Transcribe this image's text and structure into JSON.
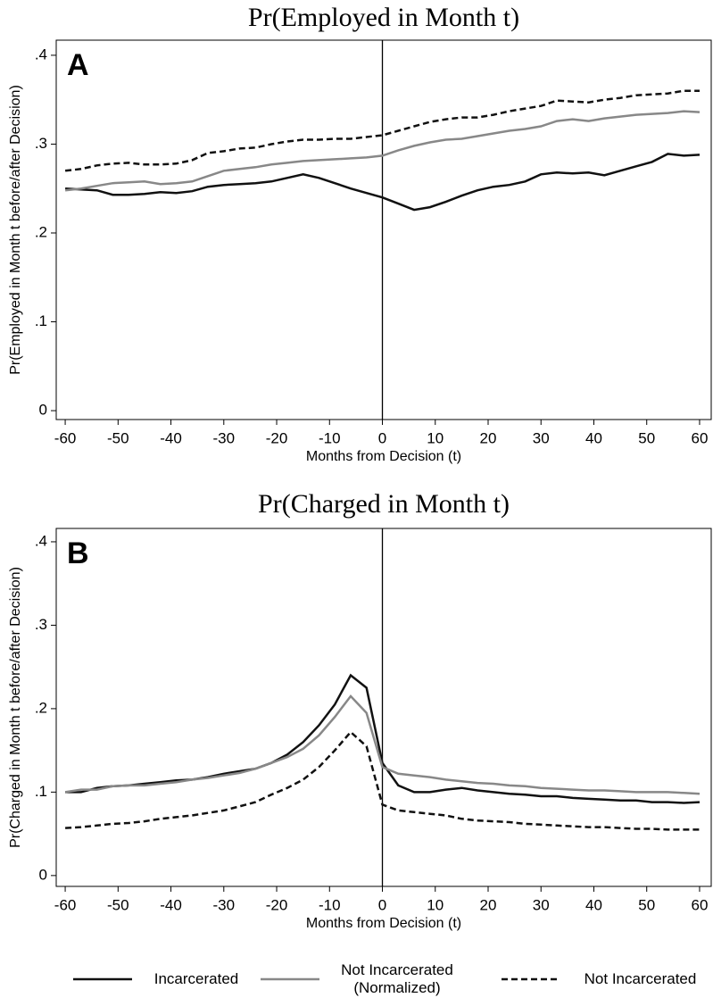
{
  "chart_data": [
    {
      "type": "line",
      "title": "Pr(Employed in Month t)",
      "panel_label": "A",
      "x_label": "Months from Decision (t)",
      "y_label": "Pr(Employed in Month t before/after Decision)",
      "vline": 0,
      "x": [
        -60,
        -57,
        -54,
        -51,
        -48,
        -45,
        -42,
        -39,
        -36,
        -33,
        -30,
        -27,
        -24,
        -21,
        -18,
        -15,
        -12,
        -9,
        -6,
        -3,
        0,
        3,
        6,
        9,
        12,
        15,
        18,
        21,
        24,
        27,
        30,
        33,
        36,
        39,
        42,
        45,
        48,
        51,
        54,
        57,
        60
      ],
      "series": [
        {
          "name": "Incarcerated",
          "color": "#111111",
          "linestyle": "solid",
          "values": [
            0.25,
            0.249,
            0.248,
            0.243,
            0.243,
            0.244,
            0.246,
            0.245,
            0.247,
            0.252,
            0.254,
            0.255,
            0.256,
            0.258,
            0.262,
            0.266,
            0.262,
            0.256,
            0.25,
            0.245,
            0.24,
            0.233,
            0.226,
            0.229,
            0.235,
            0.242,
            0.248,
            0.252,
            0.254,
            0.258,
            0.266,
            0.268,
            0.267,
            0.268,
            0.265,
            0.27,
            0.275,
            0.28,
            0.289,
            0.287,
            0.288
          ]
        },
        {
          "name": "Not Incarcerated (Normalized)",
          "color": "#888888",
          "linestyle": "solid",
          "values": [
            0.248,
            0.25,
            0.253,
            0.256,
            0.257,
            0.258,
            0.255,
            0.256,
            0.258,
            0.264,
            0.27,
            0.272,
            0.274,
            0.277,
            0.279,
            0.281,
            0.282,
            0.283,
            0.284,
            0.285,
            0.287,
            0.293,
            0.298,
            0.302,
            0.305,
            0.306,
            0.309,
            0.312,
            0.315,
            0.317,
            0.32,
            0.326,
            0.328,
            0.326,
            0.329,
            0.331,
            0.333,
            0.334,
            0.335,
            0.337,
            0.336
          ]
        },
        {
          "name": "Not Incarcerated",
          "color": "#111111",
          "linestyle": "dashed",
          "values": [
            0.27,
            0.272,
            0.276,
            0.278,
            0.279,
            0.277,
            0.277,
            0.278,
            0.282,
            0.29,
            0.292,
            0.295,
            0.296,
            0.3,
            0.303,
            0.305,
            0.305,
            0.306,
            0.306,
            0.308,
            0.31,
            0.315,
            0.32,
            0.325,
            0.328,
            0.33,
            0.33,
            0.333,
            0.337,
            0.34,
            0.343,
            0.349,
            0.348,
            0.347,
            0.35,
            0.352,
            0.355,
            0.356,
            0.357,
            0.36,
            0.36
          ]
        }
      ],
      "xlim": [
        -61.7,
        62.2
      ],
      "xticks": [
        -60,
        -50,
        -40,
        -30,
        -20,
        -10,
        0,
        10,
        20,
        30,
        40,
        50,
        60
      ],
      "ylim": [
        -0.01,
        0.417
      ],
      "yticks": [
        0,
        {
          "value": 0.1,
          "label": ".1"
        },
        {
          "value": 0.2,
          "label": ".2"
        },
        {
          "value": 0.3,
          "label": ".3"
        },
        {
          "value": 0.4,
          "label": ".4"
        }
      ]
    },
    {
      "type": "line",
      "title": "Pr(Charged in Month t)",
      "panel_label": "B",
      "x_label": "Months from Decision (t)",
      "y_label": "Pr(Charged in Month t before/after Decision)",
      "vline": 0,
      "x": [
        -60,
        -57,
        -54,
        -51,
        -48,
        -45,
        -42,
        -39,
        -36,
        -33,
        -30,
        -27,
        -24,
        -21,
        -18,
        -15,
        -12,
        -9,
        -6,
        -3,
        0,
        3,
        6,
        9,
        12,
        15,
        18,
        21,
        24,
        27,
        30,
        33,
        36,
        39,
        42,
        45,
        48,
        51,
        54,
        57,
        60
      ],
      "series": [
        {
          "name": "Incarcerated",
          "color": "#111111",
          "linestyle": "solid",
          "values": [
            0.1,
            0.1,
            0.105,
            0.107,
            0.108,
            0.11,
            0.112,
            0.114,
            0.115,
            0.118,
            0.122,
            0.125,
            0.128,
            0.135,
            0.145,
            0.16,
            0.18,
            0.205,
            0.24,
            0.225,
            0.135,
            0.108,
            0.1,
            0.1,
            0.103,
            0.105,
            0.102,
            0.1,
            0.098,
            0.097,
            0.095,
            0.095,
            0.093,
            0.092,
            0.091,
            0.09,
            0.09,
            0.088,
            0.088,
            0.087,
            0.088
          ]
        },
        {
          "name": "Not Incarcerated (Normalized)",
          "color": "#888888",
          "linestyle": "solid",
          "values": [
            0.1,
            0.103,
            0.103,
            0.107,
            0.108,
            0.108,
            0.11,
            0.112,
            0.115,
            0.117,
            0.12,
            0.123,
            0.128,
            0.135,
            0.142,
            0.152,
            0.168,
            0.19,
            0.215,
            0.195,
            0.13,
            0.122,
            0.12,
            0.118,
            0.115,
            0.113,
            0.111,
            0.11,
            0.108,
            0.107,
            0.105,
            0.104,
            0.103,
            0.102,
            0.102,
            0.101,
            0.1,
            0.1,
            0.1,
            0.099,
            0.098
          ]
        },
        {
          "name": "Not Incarcerated",
          "color": "#111111",
          "linestyle": "dashed",
          "values": [
            0.057,
            0.058,
            0.06,
            0.062,
            0.063,
            0.065,
            0.068,
            0.07,
            0.072,
            0.075,
            0.078,
            0.083,
            0.088,
            0.097,
            0.105,
            0.115,
            0.13,
            0.15,
            0.172,
            0.155,
            0.085,
            0.078,
            0.076,
            0.074,
            0.072,
            0.068,
            0.066,
            0.065,
            0.064,
            0.062,
            0.061,
            0.06,
            0.059,
            0.058,
            0.058,
            0.057,
            0.056,
            0.056,
            0.055,
            0.055,
            0.055
          ]
        }
      ],
      "xlim": [
        -61.7,
        62.2
      ],
      "xticks": [
        -60,
        -50,
        -40,
        -30,
        -20,
        -10,
        0,
        10,
        20,
        30,
        40,
        50,
        60
      ],
      "ylim": [
        -0.013,
        0.416
      ],
      "yticks": [
        0,
        {
          "value": 0.1,
          "label": ".1"
        },
        {
          "value": 0.2,
          "label": ".2"
        },
        {
          "value": 0.3,
          "label": ".3"
        },
        {
          "value": 0.4,
          "label": ".4"
        }
      ]
    }
  ]
}
